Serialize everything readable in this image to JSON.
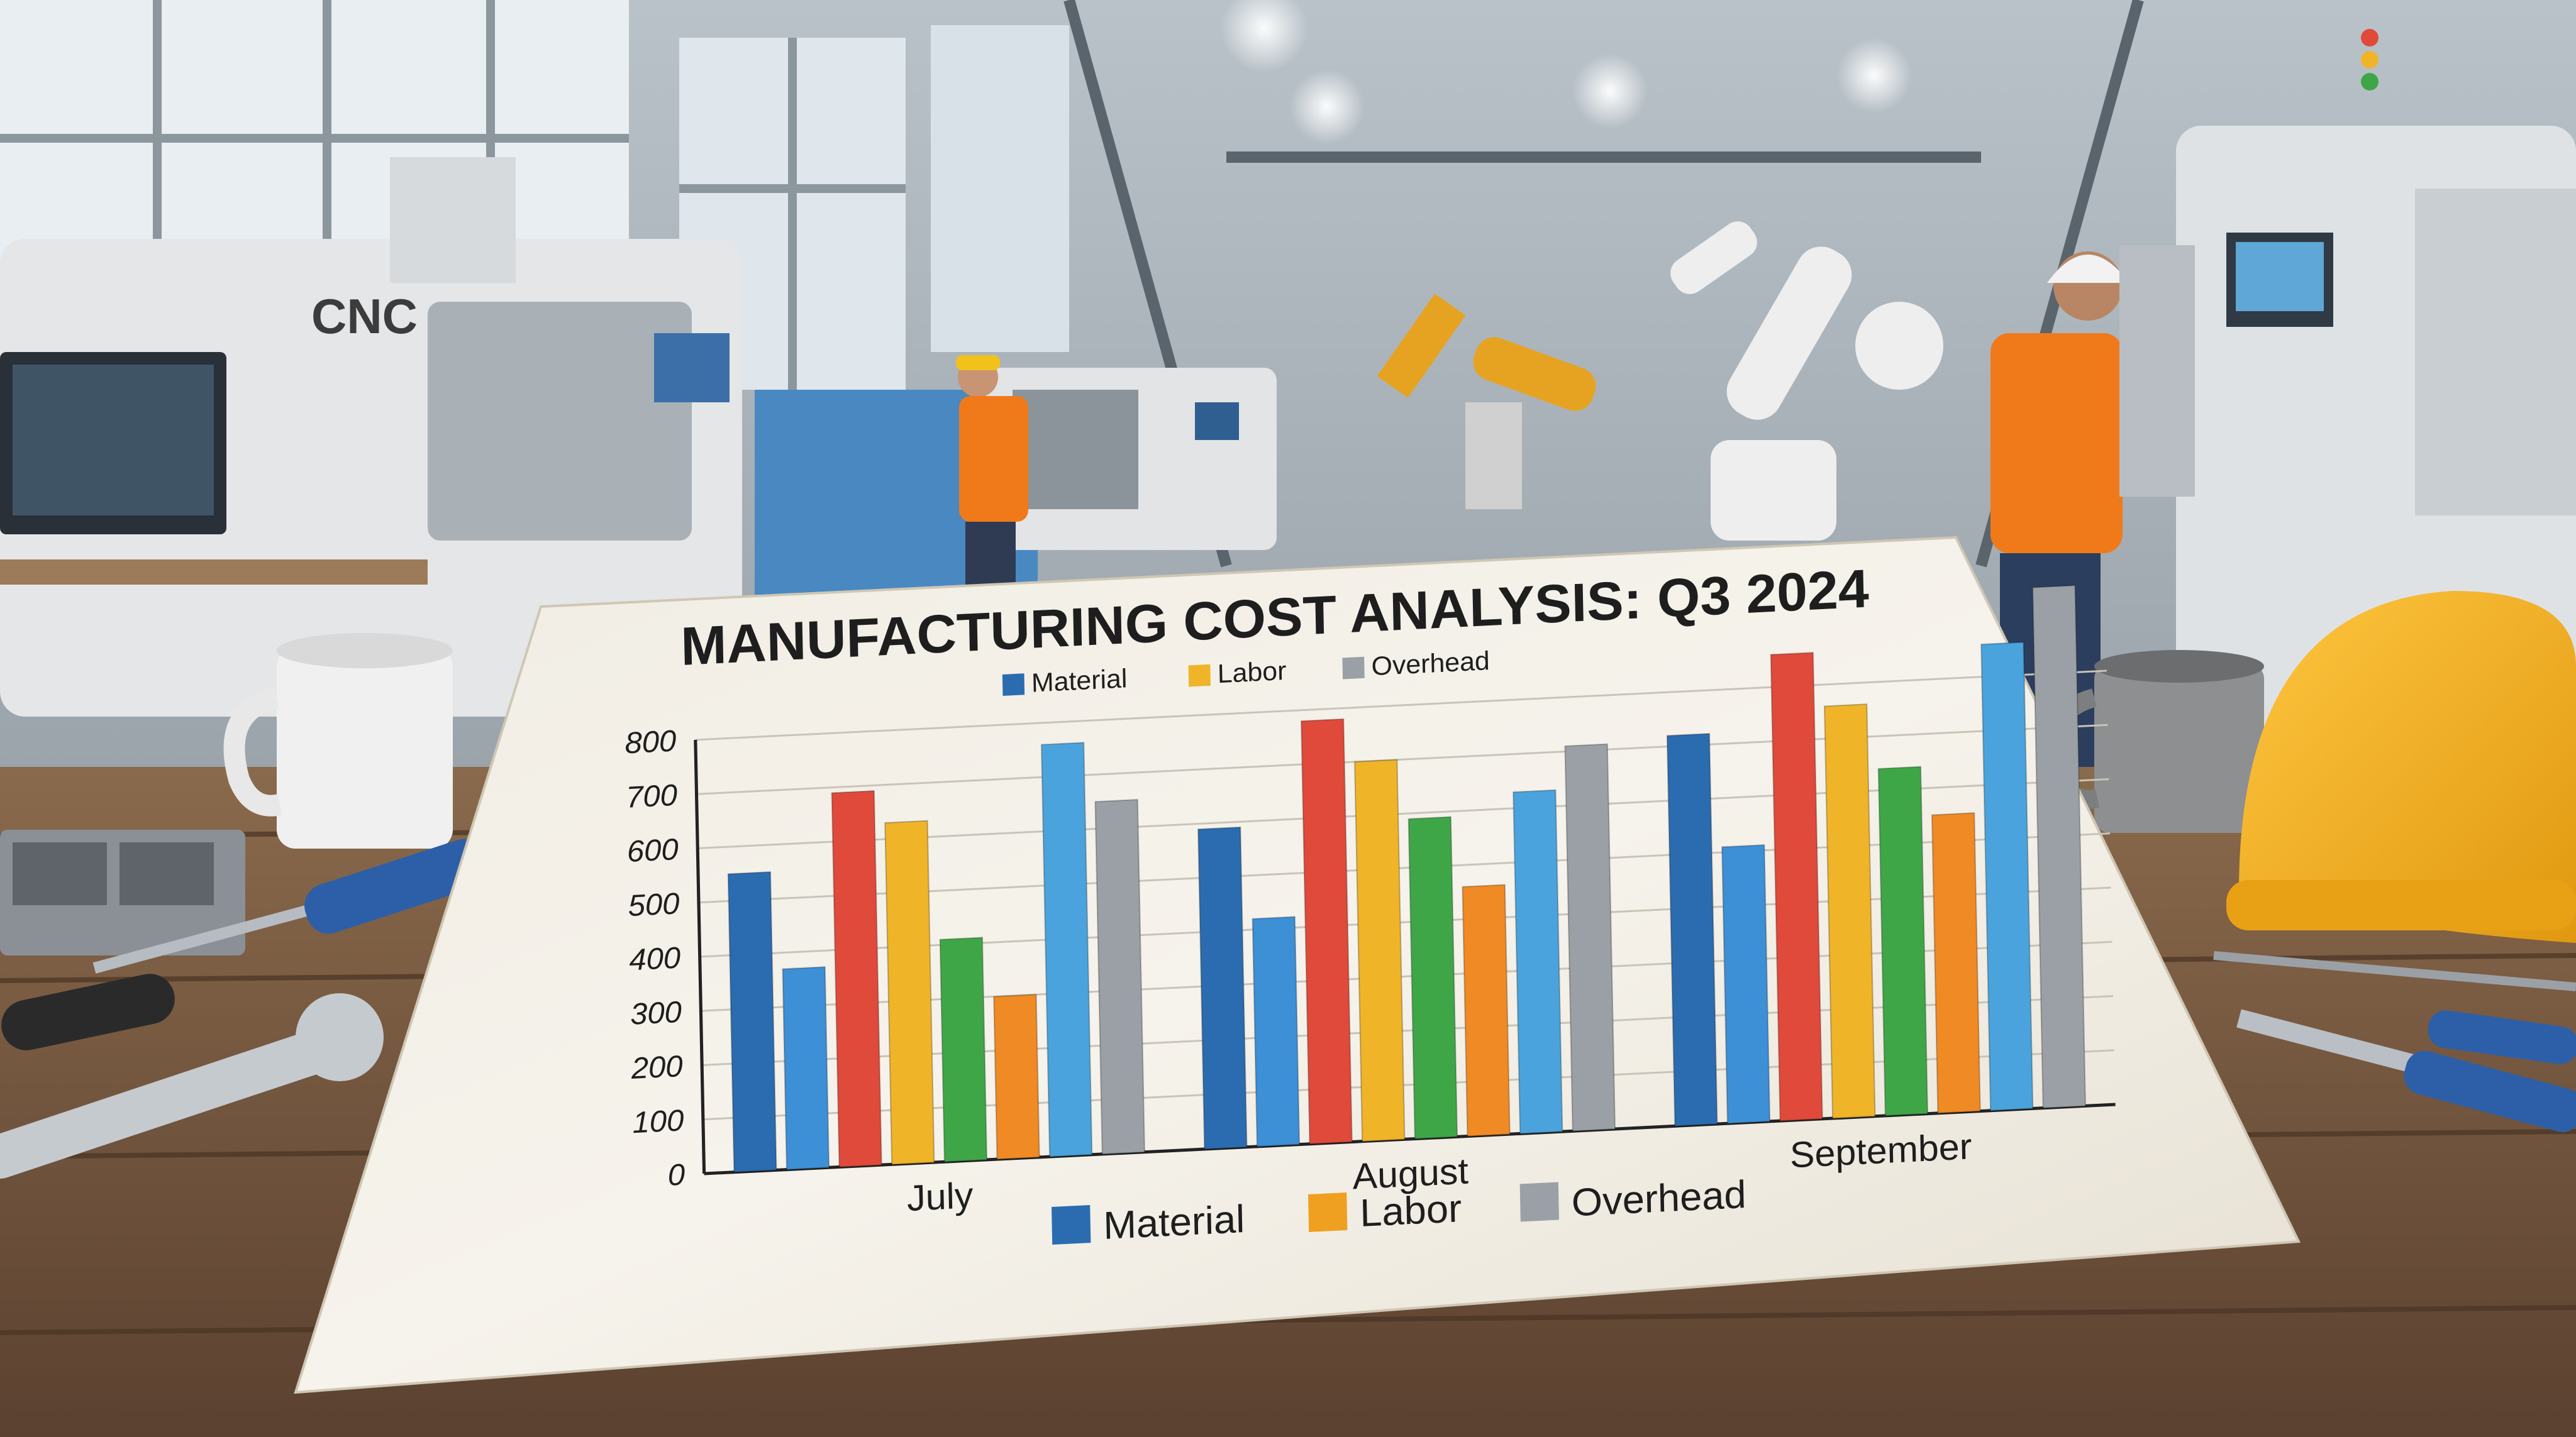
{
  "scene": {
    "machine_label": "CNC"
  },
  "chart_data": {
    "type": "bar",
    "title": "MANUFACTURING COST ANALYSIS: Q3 2024",
    "categories": [
      "July",
      "August",
      "September"
    ],
    "series": [
      {
        "name": "Material",
        "color": "#2b6cb0"
      },
      {
        "name": "Labor",
        "color": "#f0b429"
      },
      {
        "name": "Overhead",
        "color": "#9aa0a6"
      }
    ],
    "legend_top": [
      "Material",
      "Labor",
      "Overhead"
    ],
    "legend_bottom": [
      "Material",
      "Labor",
      "Overhead"
    ],
    "bar_colors": [
      "#2b6cb0",
      "#3d8fd6",
      "#e04a3a",
      "#f0b429",
      "#3fa648",
      "#f08a24",
      "#4aa3dc",
      "#9aa0a6"
    ],
    "values": [
      [
        550,
        370,
        690,
        630,
        410,
        300,
        760,
        650
      ],
      [
        590,
        420,
        780,
        700,
        590,
        460,
        630,
        710
      ],
      [
        720,
        510,
        860,
        760,
        640,
        550,
        860,
        960
      ]
    ],
    "y_ticks": [
      "0",
      "100",
      "200",
      "300",
      "400",
      "500",
      "600",
      "700",
      "800"
    ],
    "ylim": [
      0,
      800
    ],
    "grid": true,
    "legend_position": "top-and-bottom"
  }
}
